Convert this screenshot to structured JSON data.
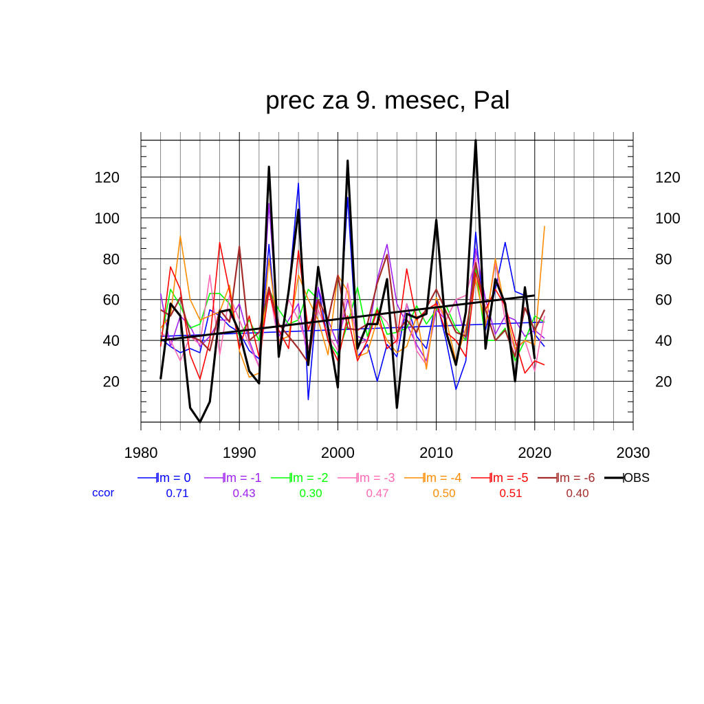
{
  "chart_data": {
    "type": "line",
    "title": "prec za 9. mesec, Pal",
    "xlabel": "",
    "ylabel": "",
    "xlim": [
      1980,
      2030
    ],
    "ylim": [
      0,
      138
    ],
    "xticks": [
      1980,
      1990,
      2000,
      2010,
      2020,
      2030
    ],
    "yticks": [
      20,
      40,
      60,
      80,
      100,
      120
    ],
    "grid": true,
    "legend_position": "bottom",
    "ccor_label": "ccor",
    "x": [
      1982,
      1983,
      1984,
      1985,
      1986,
      1987,
      1988,
      1989,
      1990,
      1991,
      1992,
      1993,
      1994,
      1995,
      1996,
      1997,
      1998,
      1999,
      2000,
      2001,
      2002,
      2003,
      2004,
      2005,
      2006,
      2007,
      2008,
      2009,
      2010,
      2011,
      2012,
      2013,
      2014,
      2015,
      2016,
      2017,
      2018,
      2019,
      2020,
      2021
    ],
    "series": [
      {
        "name": "lm = 0",
        "ccor": "0.71",
        "color": "#0000ff",
        "width": 1.6,
        "trend": [
          42,
          49
        ],
        "values": [
          41,
          37,
          34,
          36,
          34,
          55,
          52,
          47,
          44,
          35,
          31,
          87,
          33,
          64,
          117,
          11,
          66,
          40,
          33,
          110,
          32,
          38,
          20,
          38,
          32,
          58,
          42,
          36,
          60,
          40,
          16,
          30,
          93,
          45,
          65,
          88,
          64,
          62,
          43,
          37
        ]
      },
      {
        "name": "lm = -1",
        "ccor": "0.43",
        "color": "#a020f0",
        "width": 1.6,
        "values": [
          63,
          37,
          52,
          47,
          37,
          42,
          50,
          50,
          58,
          40,
          27,
          107,
          42,
          50,
          58,
          30,
          66,
          50,
          38,
          60,
          42,
          40,
          70,
          87,
          58,
          48,
          38,
          30,
          55,
          50,
          60,
          40,
          85,
          60,
          43,
          52,
          50,
          42,
          45,
          41
        ]
      },
      {
        "name": "lm = -2",
        "ccor": "0.30",
        "color": "#00ff00",
        "width": 1.6,
        "values": [
          39,
          65,
          57,
          46,
          48,
          63,
          63,
          58,
          42,
          50,
          40,
          65,
          55,
          48,
          50,
          65,
          60,
          40,
          33,
          48,
          66,
          42,
          56,
          43,
          44,
          46,
          57,
          48,
          55,
          57,
          46,
          40,
          76,
          40,
          40,
          46,
          30,
          40,
          52,
          49
        ]
      },
      {
        "name": "lm = -3",
        "ccor": "0.47",
        "color": "#ff69b4",
        "width": 1.6,
        "values": [
          44,
          40,
          30,
          42,
          38,
          72,
          33,
          62,
          50,
          38,
          27,
          66,
          38,
          60,
          50,
          36,
          55,
          43,
          35,
          68,
          38,
          40,
          54,
          49,
          38,
          58,
          35,
          28,
          58,
          50,
          60,
          62,
          80,
          48,
          78,
          50,
          35,
          40,
          25,
          52
        ]
      },
      {
        "name": "lm = -4",
        "ccor": "0.50",
        "color": "#ff8c00",
        "width": 1.6,
        "values": [
          46,
          52,
          91,
          60,
          50,
          52,
          54,
          67,
          35,
          22,
          24,
          80,
          40,
          42,
          72,
          60,
          50,
          33,
          72,
          64,
          32,
          34,
          50,
          40,
          34,
          37,
          52,
          26,
          61,
          50,
          30,
          46,
          70,
          47,
          80,
          55,
          36,
          40,
          38,
          96
        ]
      },
      {
        "name": "lm = -5",
        "ccor": "0.51",
        "color": "#ff0000",
        "width": 1.6,
        "values": [
          37,
          76,
          65,
          33,
          21,
          40,
          88,
          64,
          36,
          52,
          32,
          64,
          45,
          36,
          84,
          45,
          60,
          40,
          30,
          52,
          30,
          40,
          55,
          36,
          40,
          75,
          50,
          55,
          58,
          44,
          40,
          32,
          73,
          55,
          65,
          57,
          40,
          24,
          30,
          28
        ]
      },
      {
        "name": "lm = -6",
        "ccor": "0.40",
        "color": "#a52a2a",
        "width": 2.2,
        "values": [
          55,
          52,
          61,
          42,
          40,
          35,
          55,
          49,
          86,
          40,
          44,
          66,
          48,
          42,
          36,
          29,
          60,
          50,
          72,
          46,
          45,
          48,
          68,
          82,
          44,
          50,
          44,
          56,
          65,
          54,
          44,
          42,
          78,
          55,
          40,
          45,
          32,
          56,
          45,
          55
        ]
      },
      {
        "name": "OBS",
        "ccor": "",
        "color": "#000000",
        "width": 3.2,
        "trend": [
          40,
          62
        ],
        "values": [
          21,
          58,
          52,
          7,
          0,
          10,
          54,
          55,
          44,
          25,
          19,
          125,
          32,
          64,
          104,
          28,
          76,
          46,
          17,
          128,
          36,
          48,
          48,
          70,
          7,
          53,
          51,
          53,
          99,
          44,
          28,
          54,
          138,
          36,
          70,
          58,
          20,
          66,
          31,
          null
        ]
      }
    ]
  }
}
